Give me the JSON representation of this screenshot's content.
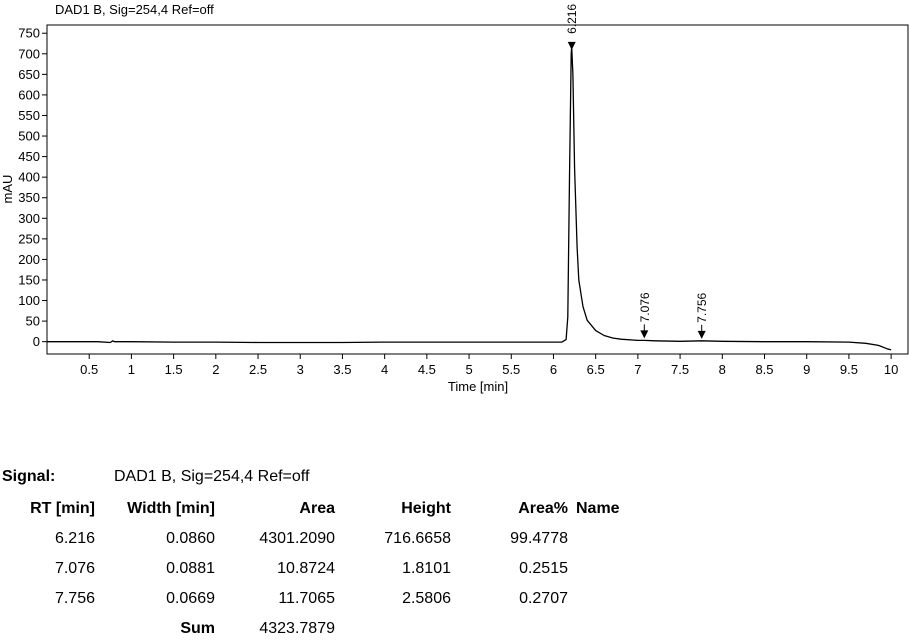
{
  "chart_data": {
    "type": "line",
    "title": "DAD1 B, Sig=254,4 Ref=off",
    "xlabel": "Time [min]",
    "ylabel": "mAU",
    "xlim": [
      0,
      10.2
    ],
    "ylim": [
      -30,
      770
    ],
    "x_ticks": [
      0.5,
      1,
      1.5,
      2,
      2.5,
      3,
      3.5,
      4,
      4.5,
      5,
      5.5,
      6,
      6.5,
      7,
      7.5,
      8,
      8.5,
      9,
      9.5,
      10
    ],
    "x_tick_labels": [
      "0.5",
      "1",
      "1.5",
      "2",
      "2.5",
      "3",
      "3.5",
      "4",
      "4.5",
      "5",
      "5.5",
      "6",
      "6.5",
      "7",
      "7.5",
      "8",
      "8.5",
      "9",
      "9.5",
      "10"
    ],
    "y_ticks": [
      0,
      50,
      100,
      150,
      200,
      250,
      300,
      350,
      400,
      450,
      500,
      550,
      600,
      650,
      700,
      750
    ],
    "y_tick_labels": [
      "0",
      "50",
      "100",
      "150",
      "200",
      "250",
      "300",
      "350",
      "400",
      "450",
      "500",
      "550",
      "600",
      "650",
      "700",
      "750"
    ],
    "grid": false,
    "series": [
      {
        "x": [
          0.0,
          0.3,
          0.6,
          0.75,
          0.78,
          0.8,
          0.85,
          1.0,
          1.5,
          2.0,
          2.5,
          3.0,
          3.5,
          4.0,
          4.5,
          5.0,
          5.5,
          5.8,
          6.0,
          6.1,
          6.15,
          6.17,
          6.19,
          6.21,
          6.216,
          6.23,
          6.25,
          6.28,
          6.3,
          6.35,
          6.4,
          6.5,
          6.6,
          6.7,
          6.8,
          7.0,
          7.076,
          7.2,
          7.5,
          7.756,
          8.0,
          8.5,
          9.0,
          9.5,
          9.7,
          9.85,
          9.95,
          10.0
        ],
        "y": [
          0,
          0,
          0,
          -2,
          2,
          0,
          0,
          0,
          -1,
          -1,
          -2,
          -2,
          -2,
          -1,
          -1,
          -1,
          -1,
          -1,
          -1,
          -1,
          5,
          60,
          400,
          700,
          716.7,
          650,
          420,
          230,
          150,
          85,
          52,
          27,
          15,
          9,
          6,
          3,
          3,
          2,
          1,
          2,
          1,
          0,
          0,
          -1,
          -4,
          -9,
          -17,
          -20
        ]
      }
    ],
    "annotations": [
      {
        "label": "6.216",
        "x": 6.216,
        "y": 716.7
      },
      {
        "label": "7.076",
        "x": 7.076,
        "y": 3
      },
      {
        "label": "7.756",
        "x": 7.756,
        "y": 2
      }
    ],
    "colors": {
      "line": "#000000",
      "axis": "#000000"
    }
  },
  "report": {
    "signal_label": "Signal:",
    "signal_value": "DAD1 B, Sig=254,4 Ref=off",
    "columns": [
      "RT [min]",
      "Width [min]",
      "Area",
      "Height",
      "Area%",
      "Name"
    ],
    "rows": [
      [
        "6.216",
        "0.0860",
        "4301.2090",
        "716.6658",
        "99.4778",
        ""
      ],
      [
        "7.076",
        "0.0881",
        "10.8724",
        "1.8101",
        "0.2515",
        ""
      ],
      [
        "7.756",
        "0.0669",
        "11.7065",
        "2.5806",
        "0.2707",
        ""
      ]
    ],
    "sum_label": "Sum",
    "sum_value": "4323.7879"
  }
}
